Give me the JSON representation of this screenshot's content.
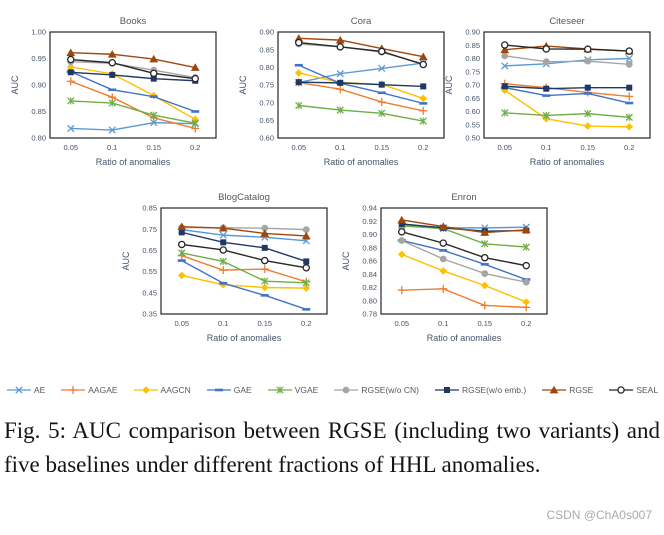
{
  "figure": {
    "caption": "Fig. 5: AUC comparison between RGSE (including two variants) and five baselines under different fractions of HHL anomalies.",
    "watermark": "CSDN @ChA0s007"
  },
  "colors": {
    "tick_label": "#44546A",
    "chart_title": "#595959",
    "axis_label": "#44546A",
    "plot_border": "#262626"
  },
  "series_styles": [
    {
      "name": "AE",
      "color": "#5B9BD5",
      "marker": "x"
    },
    {
      "name": "AAGAE",
      "color": "#ED7D31",
      "marker": "plus"
    },
    {
      "name": "AAGCN",
      "color": "#FFC000",
      "marker": "diamond"
    },
    {
      "name": "GAE",
      "color": "#4472C4",
      "marker": "dash"
    },
    {
      "name": "VGAE",
      "color": "#70AD47",
      "marker": "star"
    },
    {
      "name": "RGSE(w/o CN)",
      "color": "#A5A5A5",
      "marker": "circle"
    },
    {
      "name": "RGSE(w/o emb.)",
      "color": "#1F3864",
      "marker": "square"
    },
    {
      "name": "RGSE",
      "color": "#9E480E",
      "marker": "triangle"
    },
    {
      "name": "SEAL",
      "color": "#262626",
      "marker": "circle-open"
    }
  ],
  "chart_data": [
    {
      "id": "books",
      "type": "line",
      "title": "Books",
      "xlabel": "Ratio of anomalies",
      "ylabel": "AUC",
      "x": [
        "0.05",
        "0.1",
        "0.15",
        "0.2"
      ],
      "ylim": [
        0.8,
        1.0
      ],
      "yticks": [
        "0.80",
        "0.85",
        "0.90",
        "0.95",
        "1.00"
      ],
      "series": [
        {
          "name": "AE",
          "values": [
            0.818,
            0.815,
            0.829,
            0.827
          ]
        },
        {
          "name": "AAGAE",
          "values": [
            0.907,
            0.877,
            0.838,
            0.818
          ]
        },
        {
          "name": "AAGCN",
          "values": [
            0.934,
            0.921,
            0.88,
            0.835
          ]
        },
        {
          "name": "GAE",
          "values": [
            0.925,
            0.891,
            0.878,
            0.85
          ]
        },
        {
          "name": "VGAE",
          "values": [
            0.87,
            0.866,
            0.843,
            0.828
          ]
        },
        {
          "name": "RGSE(w/o CN)",
          "values": [
            0.944,
            0.941,
            0.928,
            0.914
          ]
        },
        {
          "name": "RGSE(w/o emb.)",
          "values": [
            0.924,
            0.919,
            0.912,
            0.908
          ]
        },
        {
          "name": "RGSE",
          "values": [
            0.961,
            0.958,
            0.949,
            0.933
          ]
        },
        {
          "name": "SEAL",
          "values": [
            0.948,
            0.942,
            0.922,
            0.912
          ]
        }
      ]
    },
    {
      "id": "cora",
      "type": "line",
      "title": "Cora",
      "xlabel": "Ratio of anomalies",
      "ylabel": "AUC",
      "x": [
        "0.05",
        "0.1",
        "0.15",
        "0.2"
      ],
      "ylim": [
        0.6,
        0.9
      ],
      "yticks": [
        "0.60",
        "0.65",
        "0.70",
        "0.75",
        "0.80",
        "0.85",
        "0.90"
      ],
      "series": [
        {
          "name": "AE",
          "values": [
            0.757,
            0.782,
            0.797,
            0.812
          ]
        },
        {
          "name": "AAGAE",
          "values": [
            0.757,
            0.738,
            0.702,
            0.677
          ]
        },
        {
          "name": "AAGCN",
          "values": [
            0.784,
            0.757,
            0.752,
            0.712
          ]
        },
        {
          "name": "GAE",
          "values": [
            0.806,
            0.755,
            0.728,
            0.698
          ]
        },
        {
          "name": "VGAE",
          "values": [
            0.692,
            0.679,
            0.67,
            0.648
          ]
        },
        {
          "name": "RGSE(w/o CN)",
          "values": [
            0.866,
            0.858,
            0.843,
            0.81
          ]
        },
        {
          "name": "RGSE(w/o emb.)",
          "values": [
            0.758,
            0.756,
            0.751,
            0.746
          ]
        },
        {
          "name": "RGSE",
          "values": [
            0.882,
            0.877,
            0.853,
            0.83
          ]
        },
        {
          "name": "SEAL",
          "values": [
            0.87,
            0.858,
            0.845,
            0.808
          ]
        }
      ]
    },
    {
      "id": "citeseer",
      "type": "line",
      "title": "Citeseer",
      "xlabel": "Ratio of anomalies",
      "ylabel": "AUC",
      "x": [
        "0.05",
        "0.1",
        "0.15",
        "0.2"
      ],
      "ylim": [
        0.5,
        0.9
      ],
      "yticks": [
        "0.50",
        "0.55",
        "0.60",
        "0.65",
        "0.70",
        "0.75",
        "0.80",
        "0.85",
        "0.90"
      ],
      "series": [
        {
          "name": "AE",
          "values": [
            0.772,
            0.78,
            0.795,
            0.8
          ]
        },
        {
          "name": "AAGAE",
          "values": [
            0.705,
            0.69,
            0.672,
            0.657
          ]
        },
        {
          "name": "AAGCN",
          "values": [
            0.68,
            0.573,
            0.545,
            0.542
          ]
        },
        {
          "name": "GAE",
          "values": [
            0.69,
            0.66,
            0.668,
            0.632
          ]
        },
        {
          "name": "VGAE",
          "values": [
            0.595,
            0.585,
            0.592,
            0.578
          ]
        },
        {
          "name": "RGSE(w/o CN)",
          "values": [
            0.81,
            0.788,
            0.79,
            0.778
          ]
        },
        {
          "name": "RGSE(w/o emb.)",
          "values": [
            0.695,
            0.686,
            0.69,
            0.69
          ]
        },
        {
          "name": "RGSE",
          "values": [
            0.833,
            0.847,
            0.836,
            0.828
          ]
        },
        {
          "name": "SEAL",
          "values": [
            0.851,
            0.836,
            0.835,
            0.828
          ]
        }
      ]
    },
    {
      "id": "blogcatalog",
      "type": "line",
      "title": "BlogCatalog",
      "xlabel": "Ratio of anomalies",
      "ylabel": "AUC",
      "x": [
        "0.05",
        "0.1",
        "0.15",
        "0.2"
      ],
      "ylim": [
        0.35,
        0.85
      ],
      "yticks": [
        "0.35",
        "0.45",
        "0.55",
        "0.65",
        "0.75",
        "0.85"
      ],
      "series": [
        {
          "name": "AE",
          "values": [
            0.748,
            0.722,
            0.712,
            0.695
          ]
        },
        {
          "name": "AAGAE",
          "values": [
            0.625,
            0.557,
            0.562,
            0.502
          ]
        },
        {
          "name": "AAGCN",
          "values": [
            0.532,
            0.488,
            0.475,
            0.472
          ]
        },
        {
          "name": "GAE",
          "values": [
            0.602,
            0.495,
            0.438,
            0.372
          ]
        },
        {
          "name": "VGAE",
          "values": [
            0.638,
            0.598,
            0.505,
            0.497
          ]
        },
        {
          "name": "RGSE(w/o CN)",
          "values": [
            0.758,
            0.757,
            0.755,
            0.748
          ]
        },
        {
          "name": "RGSE(w/o emb.)",
          "values": [
            0.735,
            0.688,
            0.662,
            0.598
          ]
        },
        {
          "name": "RGSE",
          "values": [
            0.762,
            0.755,
            0.73,
            0.718
          ]
        },
        {
          "name": "SEAL",
          "values": [
            0.678,
            0.652,
            0.602,
            0.568
          ]
        }
      ]
    },
    {
      "id": "enron",
      "type": "line",
      "title": "Enron",
      "xlabel": "Ratio of anomalies",
      "ylabel": "AUC",
      "x": [
        "0.05",
        "0.1",
        "0.15",
        "0.2"
      ],
      "ylim": [
        0.78,
        0.94
      ],
      "yticks": [
        "0.78",
        "0.80",
        "0.82",
        "0.84",
        "0.86",
        "0.88",
        "0.90",
        "0.92",
        "0.94"
      ],
      "series": [
        {
          "name": "AE",
          "values": [
            0.915,
            0.91,
            0.91,
            0.911
          ]
        },
        {
          "name": "AAGAE",
          "values": [
            0.816,
            0.818,
            0.793,
            0.79
          ]
        },
        {
          "name": "AAGCN",
          "values": [
            0.87,
            0.845,
            0.823,
            0.798
          ]
        },
        {
          "name": "GAE",
          "values": [
            0.891,
            0.876,
            0.855,
            0.832
          ]
        },
        {
          "name": "VGAE",
          "values": [
            0.913,
            0.909,
            0.886,
            0.881
          ]
        },
        {
          "name": "RGSE(w/o CN)",
          "values": [
            0.891,
            0.863,
            0.841,
            0.828
          ]
        },
        {
          "name": "RGSE(w/o emb.)",
          "values": [
            0.916,
            0.91,
            0.905,
            0.906
          ]
        },
        {
          "name": "RGSE",
          "values": [
            0.922,
            0.912,
            0.903,
            0.907
          ]
        },
        {
          "name": "SEAL",
          "values": [
            0.904,
            0.887,
            0.865,
            0.853
          ]
        }
      ]
    }
  ]
}
